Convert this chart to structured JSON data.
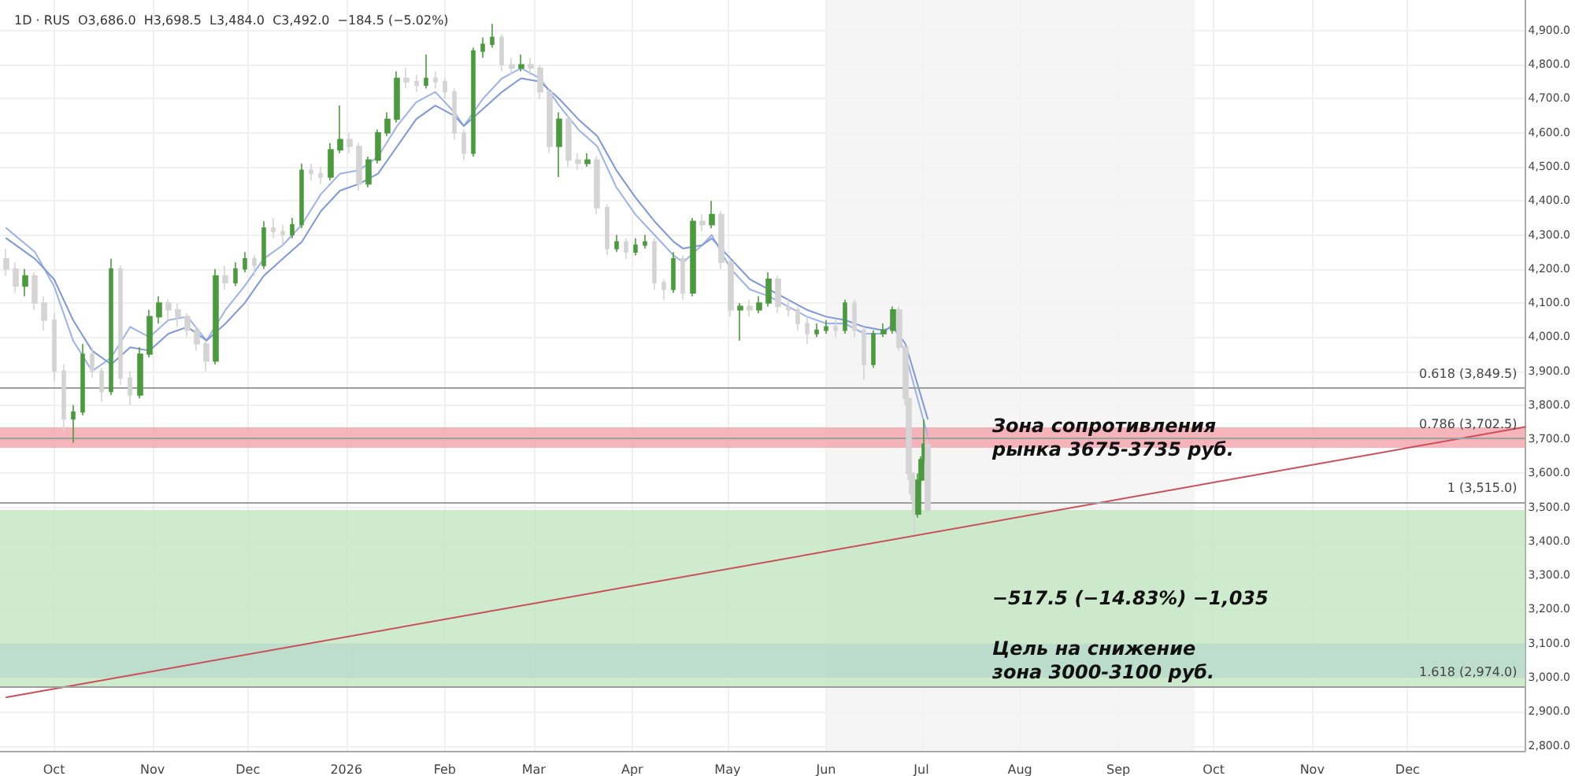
{
  "chart_data": {
    "type": "candlestick",
    "title": "1D · RUS  O3,686.0  H3,698.5  L3,484.0  C3,492.0  −184.5 (−5.02%)",
    "xlim": [
      "2025-09-14",
      "2027-01-07"
    ],
    "ylim": [
      2785,
      4990
    ],
    "xticks": [
      {
        "value": "2025-10-01",
        "label": "Oct"
      },
      {
        "value": "2025-11-01",
        "label": "Nov"
      },
      {
        "value": "2025-12-01",
        "label": "Dec"
      },
      {
        "value": "2026-01-01",
        "label": "2026"
      },
      {
        "value": "2026-02-01",
        "label": "Feb"
      },
      {
        "value": "2026-03-01",
        "label": "Mar"
      },
      {
        "value": "2026-04-01",
        "label": "Apr"
      },
      {
        "value": "2026-05-01",
        "label": "May"
      },
      {
        "value": "2026-06-01",
        "label": "Jun"
      },
      {
        "value": "2026-07-01",
        "label": "Jul"
      },
      {
        "value": "2026-08-01",
        "label": "Aug"
      },
      {
        "value": "2026-09-01",
        "label": "Sep"
      },
      {
        "value": "2026-10-01",
        "label": "Oct"
      },
      {
        "value": "2026-11-01",
        "label": "Nov"
      },
      {
        "value": "2026-12-01",
        "label": "Dec"
      }
    ],
    "yticks": [
      {
        "value": 2800,
        "label": "2,800.0"
      },
      {
        "value": 2900,
        "label": "2,900.0"
      },
      {
        "value": 3000,
        "label": "3,000.0"
      },
      {
        "value": 3100,
        "label": "3,100.0"
      },
      {
        "value": 3200,
        "label": "3,200.0"
      },
      {
        "value": 3300,
        "label": "3,300.0"
      },
      {
        "value": 3400,
        "label": "3,400.0"
      },
      {
        "value": 3500,
        "label": "3,500.0"
      },
      {
        "value": 3600,
        "label": "3,600.0"
      },
      {
        "value": 3700,
        "label": "3,700.0"
      },
      {
        "value": 3800,
        "label": "3,800.0"
      },
      {
        "value": 3900,
        "label": "3,900.0"
      },
      {
        "value": 4000,
        "label": "4,000.0"
      },
      {
        "value": 4100,
        "label": "4,100.0"
      },
      {
        "value": 4200,
        "label": "4,200.0"
      },
      {
        "value": 4300,
        "label": "4,300.0"
      },
      {
        "value": 4400,
        "label": "4,400.0"
      },
      {
        "value": 4500,
        "label": "4,500.0"
      },
      {
        "value": 4600,
        "label": "4,600.0"
      },
      {
        "value": 4700,
        "label": "4,700.0"
      },
      {
        "value": 4800,
        "label": "4,800.0"
      },
      {
        "value": 4900,
        "label": "4,900.0"
      }
    ],
    "grid": true,
    "series": [
      {
        "colors": [
          "#d4d4d4",
          "#d4d4d4",
          "#4c9a3f",
          "#d4d4d4",
          "#d4d4d4",
          "#d4d4d4",
          "#d4d4d4",
          "#4c9a3f",
          "#4c9a3f",
          "#d4d4d4",
          "#d4d4d4",
          "#4c9a3f",
          "#d4d4d4",
          "#d4d4d4",
          "#4c9a3f",
          "#4c9a3f",
          "#4c9a3f",
          "#d4d4d4",
          "#d4d4d4",
          "#d4d4d4",
          "#d4d4d4",
          "#d4d4d4",
          "#4c9a3f",
          "#d4d4d4",
          "#4c9a3f",
          "#4c9a3f",
          "#d4d4d4",
          "#4c9a3f",
          "#d4d4d4",
          "#d4d4d4",
          "#4c9a3f",
          "#4c9a3f",
          "#d4d4d4",
          "#d4d4d4",
          "#4c9a3f",
          "#4c9a3f",
          "#d4d4d4",
          "#d4d4d4",
          "#4c9a3f",
          "#4c9a3f",
          "#4c9a3f",
          "#4c9a3f",
          "#d4d4d4",
          "#d4d4d4",
          "#4c9a3f",
          "#d4d4d4",
          "#d4d4d4",
          "#d4d4d4",
          "#d4d4d4",
          "#4c9a3f",
          "#4c9a3f",
          "#4c9a3f",
          "#d4d4d4",
          "#d4d4d4",
          "#4c9a3f",
          "#d4d4d4",
          "#d4d4d4",
          "#d4d4d4",
          "#4c9a3f",
          "#d4d4d4",
          "#d4d4d4",
          "#4c9a3f",
          "#d4d4d4",
          "#d4d4d4",
          "#4c9a3f",
          "#d4d4d4",
          "#4c9a3f",
          "#4c9a3f",
          "#d4d4d4",
          "#d4d4d4",
          "#4c9a3f",
          "#d4d4d4",
          "#4c9a3f",
          "#d4d4d4",
          "#4c9a3f",
          "#d4d4d4",
          "#d4d4d4",
          "#4c9a3f",
          "#d4d4d4",
          "#4c9a3f",
          "#4c9a3f",
          "#d4d4d4",
          "#d4d4d4",
          "#d4d4d4",
          "#d4d4d4",
          "#4c9a3f",
          "#4c9a3f",
          "#d4d4d4",
          "#4c9a3f",
          "#d4d4d4",
          "#d4d4d4",
          "#4c9a3f",
          "#4c9a3f",
          "#4c9a3f",
          "#d4d4d4",
          "#d4d4d4",
          "#d4d4d4",
          "#d4d4d4",
          "#d4d4d4",
          "#4c9a3f",
          "#4c9a3f",
          "#4c9a3f",
          "#d4d4d4"
        ],
        "x": [
          "2025-09-16",
          "2025-09-19",
          "2025-09-22",
          "2025-09-25",
          "2025-09-28",
          "2025-10-01",
          "2025-10-04",
          "2025-10-07",
          "2025-10-10",
          "2025-10-13",
          "2025-10-16",
          "2025-10-19",
          "2025-10-22",
          "2025-10-25",
          "2025-10-28",
          "2025-10-31",
          "2025-11-03",
          "2025-11-06",
          "2025-11-09",
          "2025-11-12",
          "2025-11-15",
          "2025-11-18",
          "2025-11-21",
          "2025-11-24",
          "2025-11-27",
          "2025-11-30",
          "2025-12-03",
          "2025-12-06",
          "2025-12-09",
          "2025-12-12",
          "2025-12-15",
          "2025-12-18",
          "2025-12-21",
          "2025-12-24",
          "2025-12-27",
          "2025-12-30",
          "2026-01-02",
          "2026-01-05",
          "2026-01-08",
          "2026-01-11",
          "2026-01-14",
          "2026-01-17",
          "2026-01-20",
          "2026-01-23",
          "2026-01-26",
          "2026-01-29",
          "2026-02-01",
          "2026-02-04",
          "2026-02-07",
          "2026-02-10",
          "2026-02-13",
          "2026-02-16",
          "2026-02-19",
          "2026-02-22",
          "2026-02-25",
          "2026-02-28",
          "2026-03-03",
          "2026-03-06",
          "2026-03-09",
          "2026-03-12",
          "2026-03-15",
          "2026-03-18",
          "2026-03-21",
          "2026-03-24",
          "2026-03-27",
          "2026-03-30",
          "2026-04-02",
          "2026-04-05",
          "2026-04-08",
          "2026-04-11",
          "2026-04-14",
          "2026-04-17",
          "2026-04-20",
          "2026-04-23",
          "2026-04-26",
          "2026-04-29",
          "2026-05-02",
          "2026-05-05",
          "2026-05-08",
          "2026-05-11",
          "2026-05-14",
          "2026-05-17",
          "2026-05-20",
          "2026-05-23",
          "2026-05-26",
          "2026-05-29",
          "2026-06-01",
          "2026-06-04",
          "2026-06-07",
          "2026-06-10",
          "2026-06-13",
          "2026-06-16",
          "2026-06-19",
          "2026-06-22",
          "2026-06-24",
          "2026-06-26",
          "2026-06-27",
          "2026-06-28",
          "2026-06-29",
          "2026-06-30",
          "2026-07-01",
          "2026-07-02",
          "2026-07-03"
        ],
        "ohlc": [
          [
            4230,
            4260,
            4180,
            4200
          ],
          [
            4200,
            4220,
            4130,
            4150
          ],
          [
            4150,
            4200,
            4120,
            4180
          ],
          [
            4180,
            4190,
            4080,
            4100
          ],
          [
            4100,
            4120,
            4020,
            4050
          ],
          [
            4050,
            4070,
            3870,
            3900
          ],
          [
            3900,
            3920,
            3720,
            3760
          ],
          [
            3760,
            3800,
            3690,
            3780
          ],
          [
            3780,
            3980,
            3770,
            3950
          ],
          [
            3950,
            3970,
            3880,
            3900
          ],
          [
            3900,
            3910,
            3810,
            3840
          ],
          [
            3840,
            4230,
            3830,
            4200
          ],
          [
            4200,
            4210,
            3860,
            3880
          ],
          [
            3880,
            3900,
            3800,
            3830
          ],
          [
            3830,
            3970,
            3820,
            3950
          ],
          [
            3950,
            4080,
            3940,
            4060
          ],
          [
            4060,
            4120,
            4040,
            4100
          ],
          [
            4100,
            4110,
            4050,
            4080
          ],
          [
            4080,
            4100,
            4030,
            4060
          ],
          [
            4060,
            4070,
            4000,
            4020
          ],
          [
            4020,
            4030,
            3960,
            3980
          ],
          [
            3980,
            3990,
            3900,
            3930
          ],
          [
            3930,
            4200,
            3920,
            4180
          ],
          [
            4180,
            4210,
            4140,
            4160
          ],
          [
            4160,
            4220,
            4150,
            4200
          ],
          [
            4200,
            4250,
            4190,
            4230
          ],
          [
            4230,
            4240,
            4180,
            4210
          ],
          [
            4210,
            4340,
            4200,
            4320
          ],
          [
            4320,
            4350,
            4290,
            4310
          ],
          [
            4310,
            4330,
            4270,
            4300
          ],
          [
            4300,
            4350,
            4290,
            4330
          ],
          [
            4330,
            4510,
            4320,
            4490
          ],
          [
            4490,
            4510,
            4460,
            4480
          ],
          [
            4480,
            4500,
            4450,
            4470
          ],
          [
            4470,
            4570,
            4460,
            4550
          ],
          [
            4550,
            4680,
            4540,
            4580
          ],
          [
            4580,
            4600,
            4540,
            4560
          ],
          [
            4560,
            4570,
            4430,
            4450
          ],
          [
            4450,
            4530,
            4440,
            4520
          ],
          [
            4520,
            4610,
            4510,
            4600
          ],
          [
            4600,
            4660,
            4590,
            4640
          ],
          [
            4640,
            4780,
            4630,
            4760
          ],
          [
            4760,
            4790,
            4730,
            4750
          ],
          [
            4750,
            4770,
            4720,
            4740
          ],
          [
            4740,
            4830,
            4730,
            4760
          ],
          [
            4760,
            4780,
            4730,
            4750
          ],
          [
            4750,
            4760,
            4700,
            4720
          ],
          [
            4720,
            4730,
            4580,
            4600
          ],
          [
            4600,
            4610,
            4520,
            4540
          ],
          [
            4540,
            4850,
            4530,
            4840
          ],
          [
            4840,
            4880,
            4820,
            4860
          ],
          [
            4860,
            4920,
            4850,
            4880
          ],
          [
            4880,
            4890,
            4780,
            4800
          ],
          [
            4800,
            4820,
            4770,
            4790
          ],
          [
            4790,
            4830,
            4780,
            4800
          ],
          [
            4800,
            4820,
            4770,
            4790
          ],
          [
            4790,
            4800,
            4700,
            4720
          ],
          [
            4720,
            4730,
            4540,
            4560
          ],
          [
            4560,
            4660,
            4470,
            4640
          ],
          [
            4640,
            4650,
            4500,
            4520
          ],
          [
            4520,
            4540,
            4490,
            4510
          ],
          [
            4510,
            4540,
            4500,
            4520
          ],
          [
            4520,
            4530,
            4360,
            4380
          ],
          [
            4380,
            4390,
            4240,
            4260
          ],
          [
            4260,
            4300,
            4250,
            4280
          ],
          [
            4280,
            4290,
            4230,
            4250
          ],
          [
            4250,
            4290,
            4240,
            4270
          ],
          [
            4270,
            4300,
            4260,
            4280
          ],
          [
            4280,
            4290,
            4140,
            4160
          ],
          [
            4160,
            4170,
            4110,
            4140
          ],
          [
            4140,
            4250,
            4130,
            4230
          ],
          [
            4230,
            4240,
            4110,
            4130
          ],
          [
            4130,
            4350,
            4120,
            4340
          ],
          [
            4340,
            4360,
            4310,
            4330
          ],
          [
            4330,
            4400,
            4320,
            4360
          ],
          [
            4360,
            4370,
            4200,
            4220
          ],
          [
            4220,
            4230,
            4060,
            4080
          ],
          [
            4080,
            4100,
            3990,
            4090
          ],
          [
            4090,
            4110,
            4060,
            4080
          ],
          [
            4080,
            4120,
            4070,
            4100
          ],
          [
            4100,
            4190,
            4090,
            4170
          ],
          [
            4170,
            4180,
            4070,
            4090
          ],
          [
            4090,
            4110,
            4060,
            4080
          ],
          [
            4080,
            4090,
            4020,
            4040
          ],
          [
            4040,
            4060,
            3980,
            4010
          ],
          [
            4010,
            4040,
            4000,
            4020
          ],
          [
            4020,
            4050,
            4010,
            4030
          ],
          [
            4030,
            4050,
            4000,
            4020
          ],
          [
            4020,
            4110,
            4010,
            4100
          ],
          [
            4100,
            4110,
            4000,
            4020
          ],
          [
            4020,
            4030,
            3875,
            3920
          ],
          [
            3920,
            4020,
            3910,
            4010
          ],
          [
            4010,
            4040,
            4000,
            4020
          ],
          [
            4020,
            4090,
            4010,
            4080
          ],
          [
            4080,
            4090,
            3960,
            3970
          ],
          [
            3970,
            3980,
            3800,
            3820
          ],
          [
            3820,
            3830,
            3580,
            3600
          ],
          [
            3600,
            3620,
            3520,
            3540
          ],
          [
            3540,
            3560,
            3420,
            3480
          ],
          [
            3480,
            3600,
            3470,
            3580
          ],
          [
            3580,
            3650,
            3570,
            3640
          ],
          [
            3640,
            3758,
            3630,
            3686
          ],
          [
            3686,
            3698.5,
            3484,
            3492
          ]
        ]
      },
      {
        "type": "line",
        "color": "#9db2e8",
        "marker": "none",
        "line_style": "solid",
        "x": [
          "2025-09-16",
          "2025-09-25",
          "2025-10-01",
          "2025-10-07",
          "2025-10-13",
          "2025-10-19",
          "2025-10-25",
          "2025-10-31",
          "2025-11-06",
          "2025-11-12",
          "2025-11-18",
          "2025-11-24",
          "2025-11-30",
          "2025-12-06",
          "2025-12-12",
          "2025-12-18",
          "2025-12-24",
          "2025-12-30",
          "2026-01-05",
          "2026-01-11",
          "2026-01-17",
          "2026-01-23",
          "2026-01-29",
          "2026-02-04",
          "2026-02-07",
          "2026-02-13",
          "2026-02-19",
          "2026-02-25",
          "2026-03-03",
          "2026-03-09",
          "2026-03-15",
          "2026-03-21",
          "2026-03-27",
          "2026-04-02",
          "2026-04-08",
          "2026-04-14",
          "2026-04-17",
          "2026-04-23",
          "2026-04-26",
          "2026-05-02",
          "2026-05-08",
          "2026-05-14",
          "2026-05-20",
          "2026-05-26",
          "2026-06-01",
          "2026-06-07",
          "2026-06-13",
          "2026-06-19",
          "2026-06-22",
          "2026-06-26",
          "2026-07-03"
        ],
        "values": [
          4320,
          4250,
          4150,
          3990,
          3900,
          3940,
          4030,
          4000,
          4050,
          4060,
          3990,
          4080,
          4150,
          4230,
          4270,
          4330,
          4420,
          4480,
          4490,
          4530,
          4620,
          4690,
          4720,
          4660,
          4620,
          4700,
          4760,
          4790,
          4760,
          4680,
          4610,
          4560,
          4440,
          4360,
          4300,
          4240,
          4220,
          4270,
          4300,
          4200,
          4140,
          4120,
          4090,
          4060,
          4040,
          4040,
          4010,
          4010,
          4040,
          3950,
          3710
        ]
      },
      {
        "type": "line",
        "color": "#7f98d8",
        "marker": "none",
        "line_style": "solid",
        "x": [
          "2025-09-16",
          "2025-09-25",
          "2025-10-01",
          "2025-10-07",
          "2025-10-13",
          "2025-10-19",
          "2025-10-25",
          "2025-10-31",
          "2025-11-06",
          "2025-11-12",
          "2025-11-18",
          "2025-11-24",
          "2025-11-30",
          "2025-12-06",
          "2025-12-12",
          "2025-12-18",
          "2025-12-24",
          "2025-12-30",
          "2026-01-05",
          "2026-01-11",
          "2026-01-17",
          "2026-01-23",
          "2026-01-29",
          "2026-02-04",
          "2026-02-07",
          "2026-02-13",
          "2026-02-19",
          "2026-02-25",
          "2026-03-03",
          "2026-03-09",
          "2026-03-15",
          "2026-03-21",
          "2026-03-27",
          "2026-04-02",
          "2026-04-08",
          "2026-04-14",
          "2026-04-17",
          "2026-04-23",
          "2026-04-26",
          "2026-05-02",
          "2026-05-08",
          "2026-05-14",
          "2026-05-20",
          "2026-05-26",
          "2026-06-01",
          "2026-06-07",
          "2026-06-13",
          "2026-06-19",
          "2026-06-22",
          "2026-06-26",
          "2026-07-03"
        ],
        "values": [
          4290,
          4230,
          4170,
          4050,
          3960,
          3920,
          3970,
          3960,
          4010,
          4030,
          3990,
          4040,
          4100,
          4180,
          4230,
          4280,
          4370,
          4430,
          4450,
          4480,
          4560,
          4640,
          4680,
          4650,
          4620,
          4670,
          4720,
          4760,
          4750,
          4700,
          4640,
          4590,
          4490,
          4410,
          4340,
          4280,
          4260,
          4270,
          4290,
          4230,
          4170,
          4140,
          4110,
          4080,
          4060,
          4050,
          4030,
          4020,
          4030,
          3980,
          3760
        ]
      },
      {
        "type": "line",
        "color": "#c9505a",
        "marker": "none",
        "line_style": "solid",
        "x": [
          "2025-09-16",
          "2027-01-07"
        ],
        "values": [
          2942,
          3736
        ]
      }
    ],
    "ref_lines": [
      {
        "axis": "y",
        "value": 3849.5,
        "label": "0.618 (3,849.5)",
        "color": "#9e9e9e"
      },
      {
        "axis": "y",
        "value": 3702.5,
        "label": "0.786 (3,702.5)",
        "color": "#9e9e9e"
      },
      {
        "axis": "y",
        "value": 3515.0,
        "label": "1 (3,515.0)",
        "color": "#9e9e9e"
      },
      {
        "axis": "y",
        "value": 2974.0,
        "label": "1.618 (2,974.0)",
        "color": "#9e9e9e"
      }
    ],
    "bands": [
      {
        "axis": "x",
        "from": "2026-06-01",
        "to": "2026-09-25",
        "color": "#f2f2f2"
      },
      {
        "axis": "y",
        "from": 3675,
        "to": 3735,
        "color": "#f4a3aa",
        "label": "Зона сопротивления\nрынка 3675-3735 руб."
      },
      {
        "axis": "y",
        "from": 3000,
        "to": 3100,
        "color": "#8fabf7",
        "label": "Цель на снижение\nзона 3000-3100 руб."
      },
      {
        "axis": "y",
        "from": 2974.5,
        "to": 3492,
        "color": "#c3e6c0",
        "label": "−517.5 (−14.83%) −1,035"
      }
    ]
  }
}
